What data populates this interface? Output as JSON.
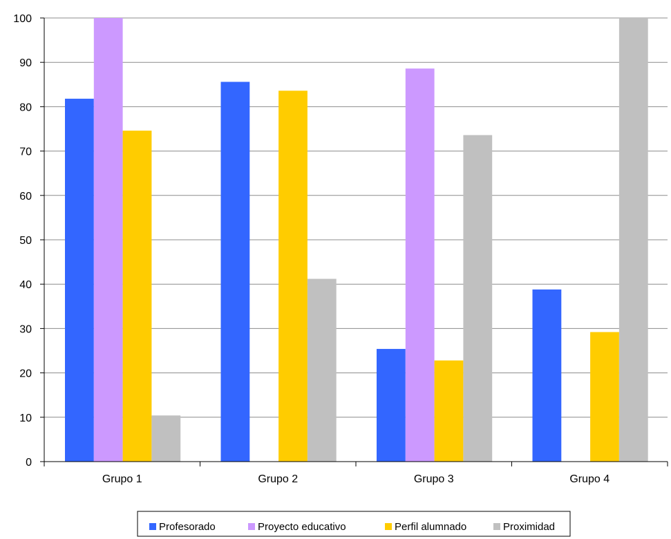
{
  "chart_data": {
    "type": "bar",
    "categories": [
      "Grupo 1",
      "Grupo 2",
      "Grupo 3",
      "Grupo 4"
    ],
    "series": [
      {
        "name": "Profesorado",
        "color": "#3366ff",
        "values": [
          81.8,
          85.6,
          25.4,
          38.8
        ]
      },
      {
        "name": "Proyecto educativo",
        "color": "#cc99ff",
        "values": [
          100,
          0,
          88.6,
          0
        ]
      },
      {
        "name": "Perfil alumnado",
        "color": "#ffcc00",
        "values": [
          74.6,
          83.6,
          22.8,
          29.2
        ]
      },
      {
        "name": "Proximidad",
        "color": "#c0c0c0",
        "values": [
          10.4,
          41.2,
          73.6,
          100
        ]
      }
    ],
    "ylim": [
      0,
      100
    ],
    "yticks": [
      "0",
      "10",
      "20",
      "30",
      "40",
      "50",
      "60",
      "70",
      "80",
      "90",
      "100"
    ],
    "grid": true,
    "legend": "bottom"
  }
}
